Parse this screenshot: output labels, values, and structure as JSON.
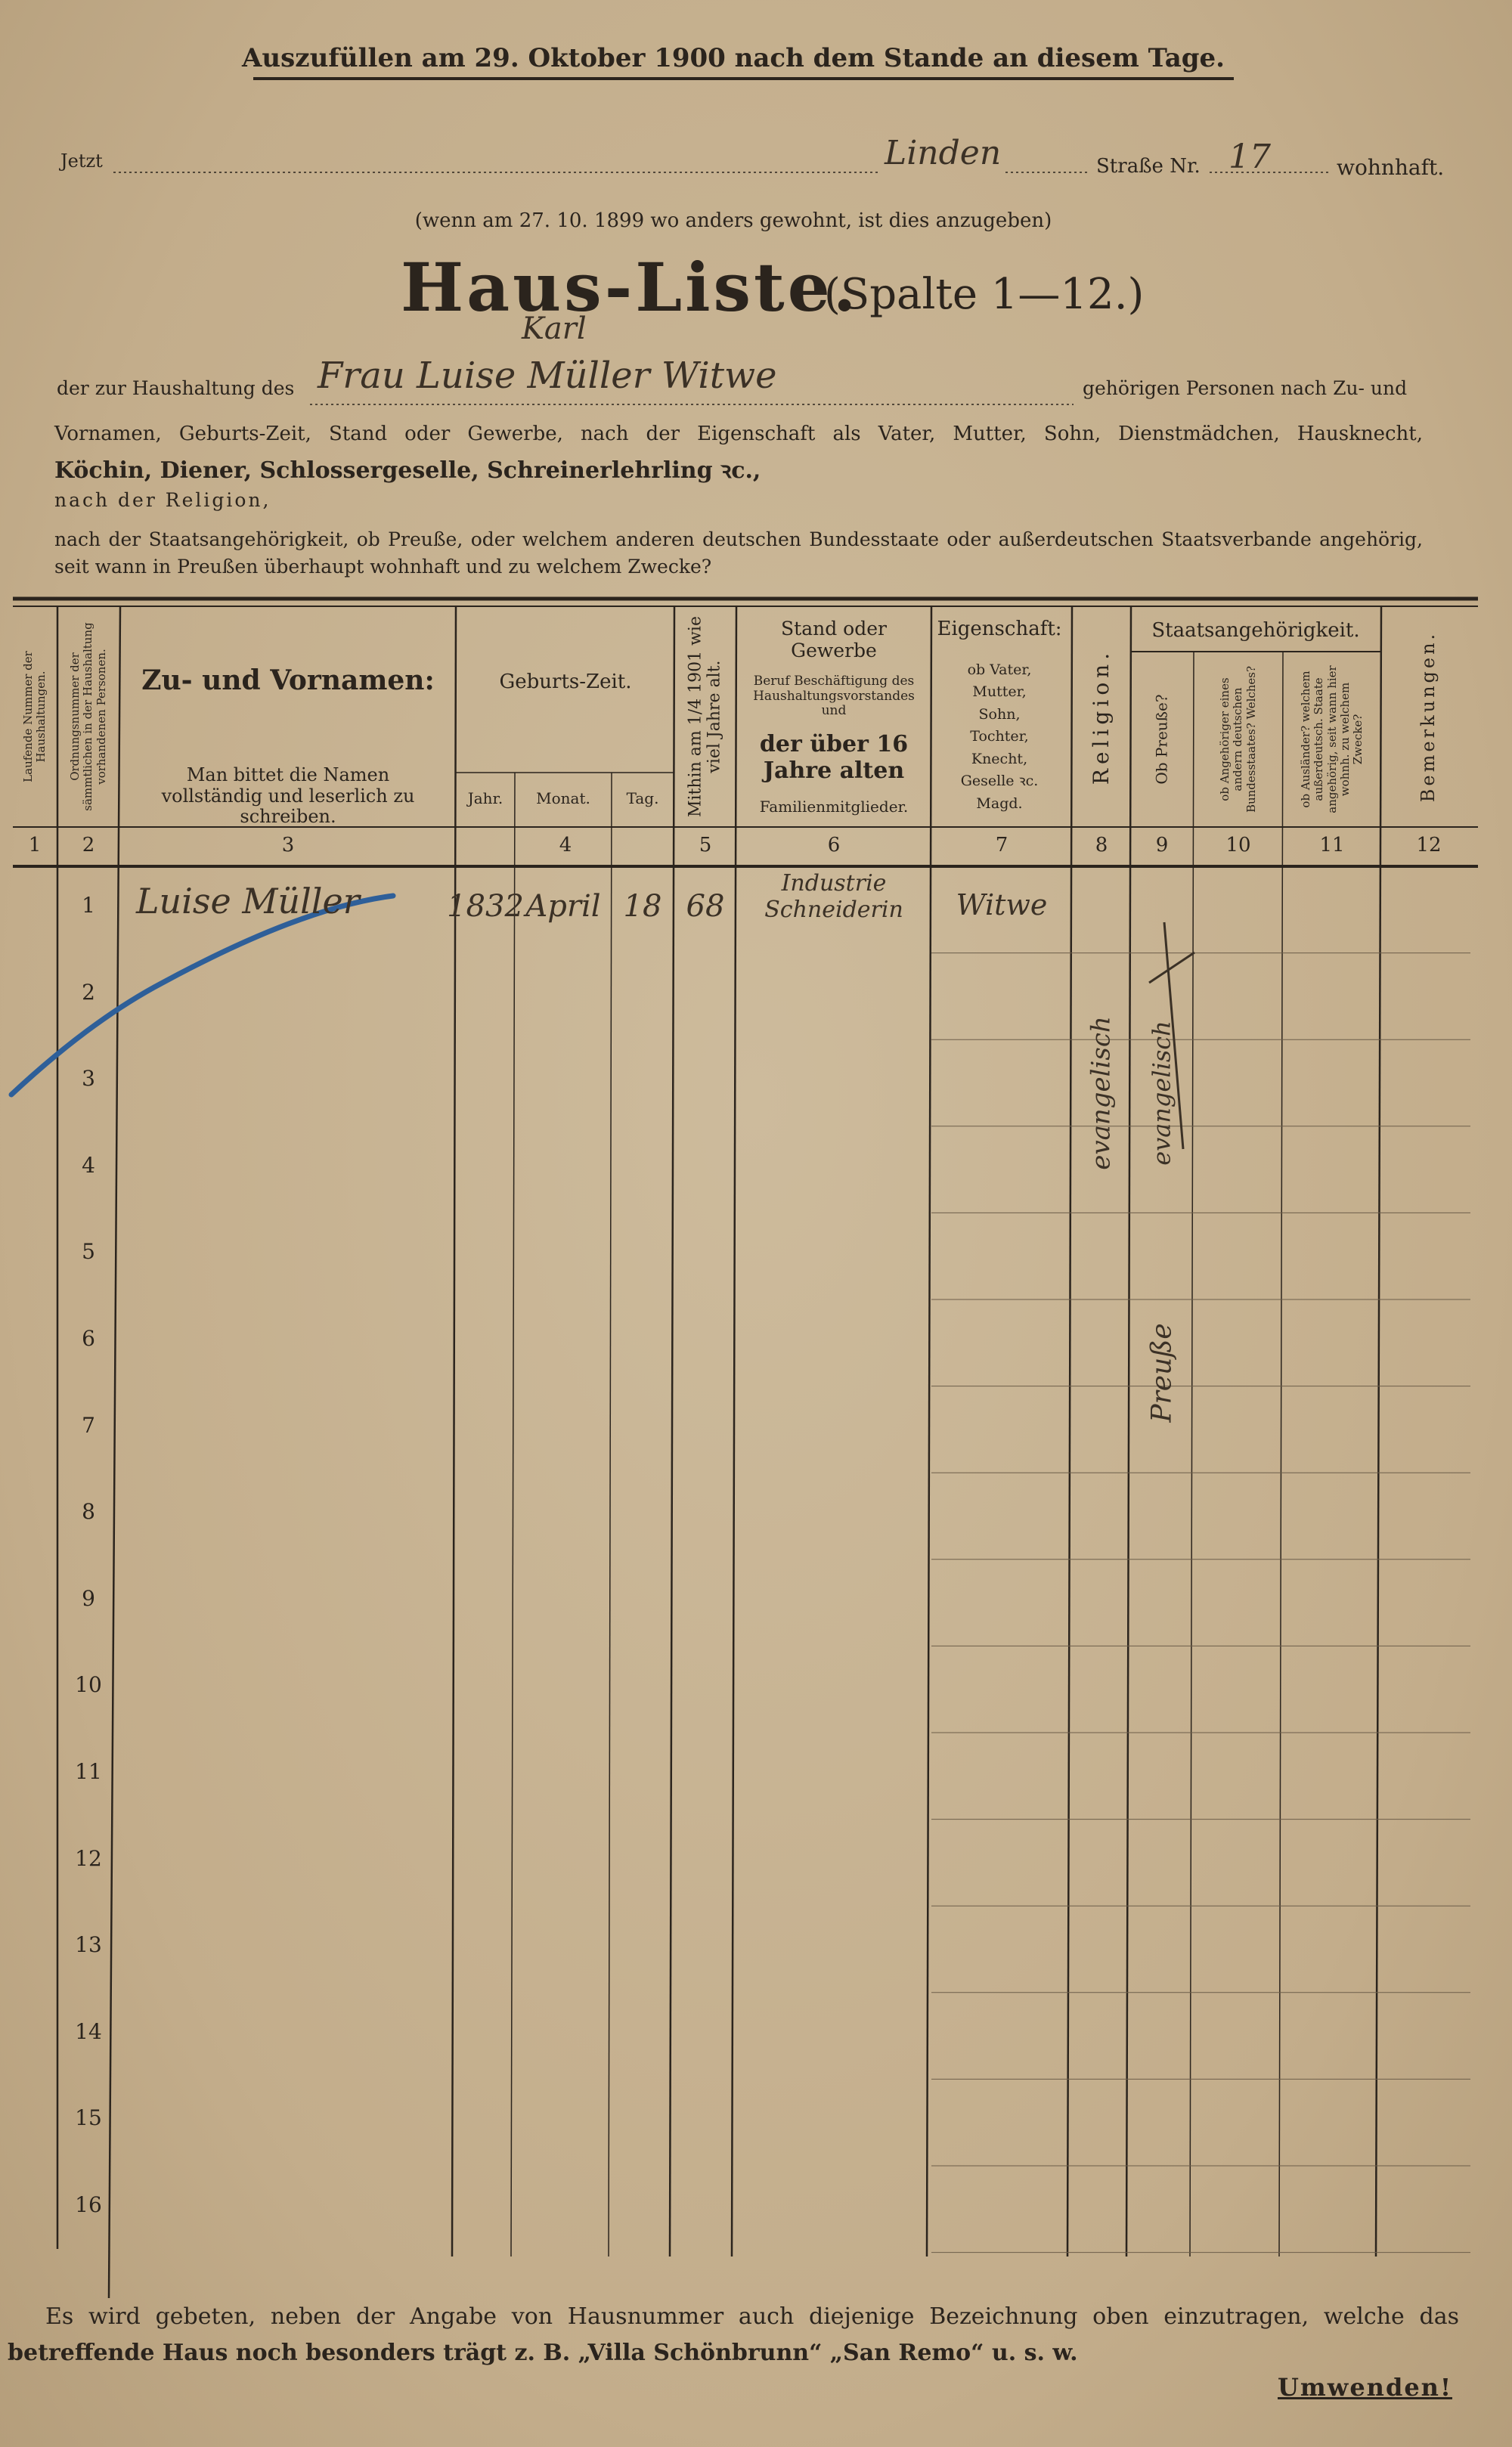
{
  "header": {
    "notice": "Auszufüllen am 29. Oktober 1900 nach dem Stande an diesem Tage."
  },
  "address": {
    "prefix": "Jetzt",
    "street": "Linden",
    "street_label": "Straße Nr.",
    "number": "17",
    "suffix": "wohnhaft.",
    "note": "(wenn am 27. 10. 1899 wo anders gewohnt, ist dies anzugeben)"
  },
  "title": {
    "main": "Haus-Liste.",
    "columns": "(Spalte 1—12.)"
  },
  "household": {
    "prefix": "der zur Haushaltung des",
    "head": "Frau Luise Müller Witwe",
    "insertion": "Karl",
    "suffix": "gehörigen Personen nach Zu- und"
  },
  "instructions": [
    "Vornamen, Geburts-Zeit, Stand oder Gewerbe, nach der Eigenschaft als Vater, Mutter, Sohn, Dienstmädchen, Hausknecht,",
    "Köchin, Diener, Schlossergeselle, Schreinerlehrling ꝛc.,",
    "nach der Religion,",
    "nach der Staatsangehörigkeit, ob Preuße, oder welchem anderen deutschen Bundesstaate oder außerdeutschen Staatsverbande angehörig,",
    "seit wann in Preußen überhaupt wohnhaft und zu welchem Zwecke?"
  ],
  "table": {
    "headers": {
      "c1": "Laufende Nummer der Haushaltungen.",
      "c2": "Ordnungsnummer der sämmtlichen in der Haushaltung vorhandenen Personen.",
      "c3_title": "Zu- und Vornamen:",
      "c3_note": "Man bittet die Namen vollständig und leserlich zu schreiben.",
      "c4_title": "Geburts-Zeit.",
      "c4_year": "Jahr.",
      "c4_month": "Monat.",
      "c4_day": "Tag.",
      "c5": "Mithin am 1/4 1901 wie viel Jahre alt.",
      "c6_title": "Stand oder Gewerbe",
      "c6_note": "Beruf Beschäftigung des Haushaltungsvorstandes und",
      "c6_bold": "der über 16 Jahre alten",
      "c6_end": "Familienmitglieder.",
      "c7_title": "Eigenschaft:",
      "c7_note": "ob Vater, Mutter, Sohn, Tochter, Knecht, Geselle ꝛc. Magd.",
      "c8": "Religion.",
      "group": "Staatsangehörigkeit.",
      "c9": "Ob Preuße?",
      "c10": "ob Angehöriger eines andern deutschen Bundesstaates? Welches?",
      "c11": "ob Ausländer? welchem außerdeutsch. Staate angehörig, seit wann hier wohnh. zu welchem Zwecke?",
      "c12": "Bemerkungen."
    },
    "column_numbers": [
      1,
      2,
      3,
      4,
      5,
      6,
      7,
      8,
      9,
      10,
      11,
      12
    ],
    "rows": [
      {
        "number": 1,
        "name": "Luise Müller",
        "year": "1832",
        "month": "April",
        "day": "18",
        "age": "68",
        "occupation": "Industrie Schneiderin",
        "relation": "Witwe",
        "religion": "evangelisch",
        "prussian_crossed": "evangelisch",
        "prussian": "Preuße"
      },
      {
        "number": 2
      },
      {
        "number": 3
      },
      {
        "number": 4
      },
      {
        "number": 5
      },
      {
        "number": 6
      },
      {
        "number": 7
      },
      {
        "number": 8
      },
      {
        "number": 9
      },
      {
        "number": 10
      },
      {
        "number": 11
      },
      {
        "number": 12
      },
      {
        "number": 13
      },
      {
        "number": 14
      },
      {
        "number": 15
      },
      {
        "number": 16
      }
    ]
  },
  "footer": {
    "lines": [
      "Es wird gebeten, neben der Angabe von Hausnummer auch diejenige Bezeichnung oben einzutragen, welche das",
      "betreffende Haus noch besonders trägt z. B. „Villa Schönbrunn“ „San Remo“ u. s. w."
    ],
    "turn": "Umwenden!"
  }
}
